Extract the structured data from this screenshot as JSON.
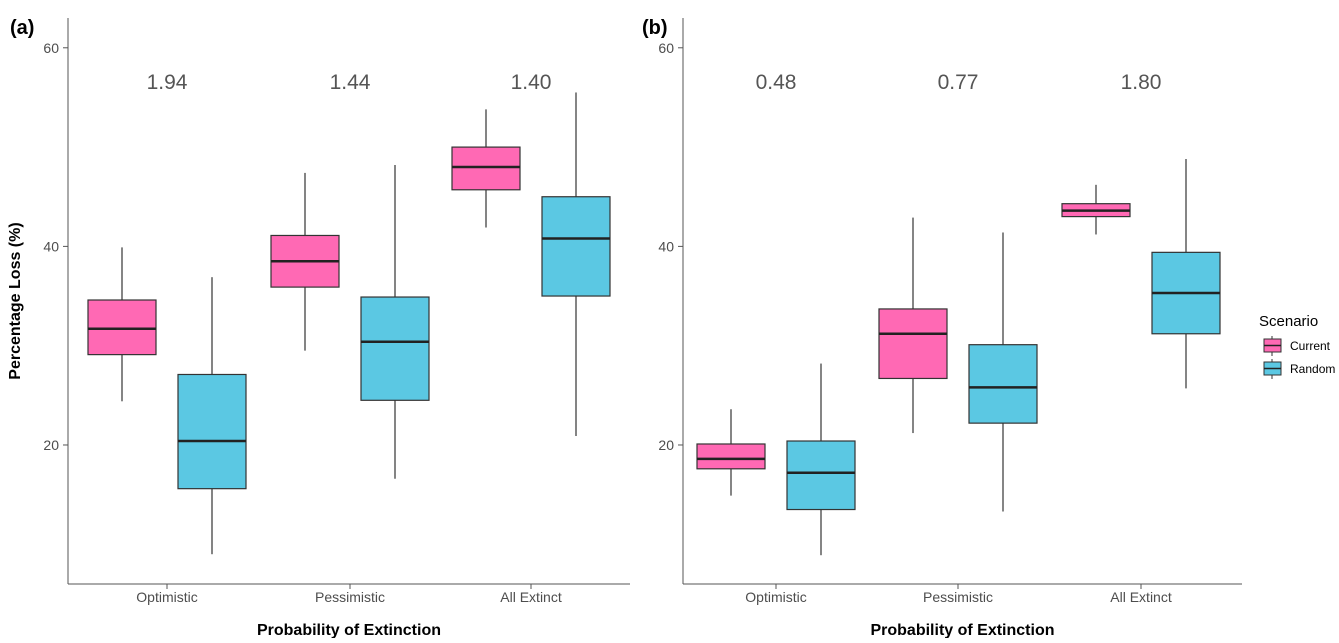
{
  "chart_data": [
    {
      "type": "boxplot",
      "panel_label": "(a)",
      "xlabel": "Probability of Extinction",
      "ylabel": "Percentage Loss (%)",
      "ylim": [
        6,
        63
      ],
      "yticks": [
        20,
        40,
        60
      ],
      "categories": [
        "Optimistic",
        "Pessimistic",
        "All Extinct"
      ],
      "annotations": [
        "1.94",
        "1.44",
        "1.40"
      ],
      "grid": false,
      "series": [
        {
          "name": "Current",
          "color": "#ff69b4",
          "boxes": [
            {
              "min": 24.4,
              "q1": 29.1,
              "median": 31.7,
              "q3": 34.6,
              "max": 39.9
            },
            {
              "min": 29.5,
              "q1": 35.9,
              "median": 38.5,
              "q3": 41.1,
              "max": 47.4
            },
            {
              "min": 41.9,
              "q1": 45.7,
              "median": 48.0,
              "q3": 50.0,
              "max": 53.8
            }
          ]
        },
        {
          "name": "Random",
          "color": "#5bc8e3",
          "boxes": [
            {
              "min": 9.0,
              "q1": 15.6,
              "median": 20.4,
              "q3": 27.1,
              "max": 36.9
            },
            {
              "min": 16.6,
              "q1": 24.5,
              "median": 30.4,
              "q3": 34.9,
              "max": 48.2
            },
            {
              "min": 20.9,
              "q1": 35.0,
              "median": 40.8,
              "q3": 45.0,
              "max": 55.5
            }
          ]
        }
      ]
    },
    {
      "type": "boxplot",
      "panel_label": "(b)",
      "xlabel": "Probability of Extinction",
      "ylabel": "",
      "ylim": [
        6,
        63
      ],
      "yticks": [
        20,
        40,
        60
      ],
      "categories": [
        "Optimistic",
        "Pessimistic",
        "All Extinct"
      ],
      "annotations": [
        "0.48",
        "0.77",
        "1.80"
      ],
      "grid": false,
      "series": [
        {
          "name": "Current",
          "color": "#ff69b4",
          "boxes": [
            {
              "min": 14.9,
              "q1": 17.6,
              "median": 18.6,
              "q3": 20.1,
              "max": 23.6
            },
            {
              "min": 21.2,
              "q1": 26.7,
              "median": 31.2,
              "q3": 33.7,
              "max": 42.9
            },
            {
              "min": 41.2,
              "q1": 43.0,
              "median": 43.6,
              "q3": 44.3,
              "max": 46.2
            }
          ]
        },
        {
          "name": "Random",
          "color": "#5bc8e3",
          "boxes": [
            {
              "min": 8.9,
              "q1": 13.5,
              "median": 17.2,
              "q3": 20.4,
              "max": 28.2
            },
            {
              "min": 13.3,
              "q1": 22.2,
              "median": 25.8,
              "q3": 30.1,
              "max": 41.4
            },
            {
              "min": 25.7,
              "q1": 31.2,
              "median": 35.3,
              "q3": 39.4,
              "max": 48.8
            }
          ]
        }
      ]
    }
  ],
  "legend": {
    "title": "Scenario",
    "position": "right",
    "items": [
      {
        "label": "Current",
        "color": "#ff69b4"
      },
      {
        "label": "Random",
        "color": "#5bc8e3"
      }
    ]
  }
}
